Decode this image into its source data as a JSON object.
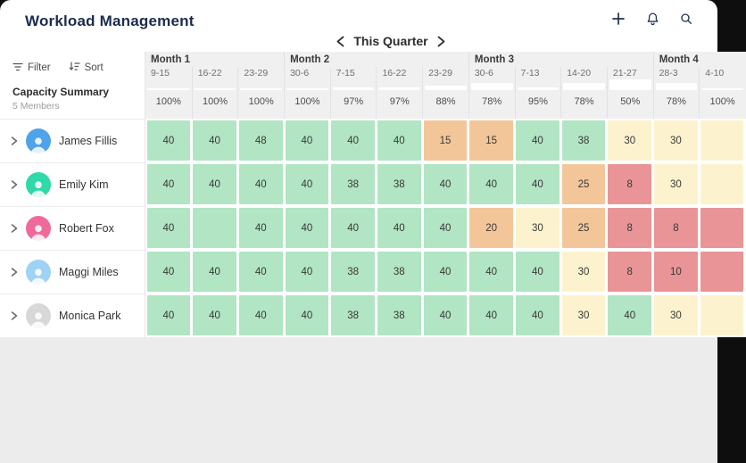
{
  "colors": {
    "green": "#b1e5c3",
    "orange": "#f3c69a",
    "yellow": "#fcf3ce",
    "red": "#e99496",
    "navy": "#1e3150"
  },
  "header": {
    "title": "Workload Management",
    "period": "This Quarter"
  },
  "toolbar": {
    "filter": "Filter",
    "sort": "Sort"
  },
  "summary": {
    "title": "Capacity Summary",
    "subtitle": "5 Members"
  },
  "grid": {
    "months": [
      {
        "label": "Month 1",
        "span": 3
      },
      {
        "label": "Month 2",
        "span": 4
      },
      {
        "label": "Month 3",
        "span": 4
      },
      {
        "label": "Month 4",
        "span": 2
      }
    ],
    "weeks": [
      "9-15",
      "16-22",
      "23-29",
      "30-6",
      "7-15",
      "16-22",
      "23-29",
      "30-6",
      "7-13",
      "14-20",
      "21-27",
      "28-3",
      "4-10"
    ],
    "capacity_pct": [
      100,
      100,
      100,
      100,
      97,
      97,
      88,
      78,
      95,
      78,
      50,
      78,
      100
    ],
    "members": [
      {
        "name": "James Fillis",
        "avatar_color": "#4fa3e8",
        "cells": [
          {
            "v": "40",
            "c": "green"
          },
          {
            "v": "40",
            "c": "green"
          },
          {
            "v": "48",
            "c": "green"
          },
          {
            "v": "40",
            "c": "green"
          },
          {
            "v": "40",
            "c": "green"
          },
          {
            "v": "40",
            "c": "green"
          },
          {
            "v": "15",
            "c": "orange"
          },
          {
            "v": "15",
            "c": "orange"
          },
          {
            "v": "40",
            "c": "green"
          },
          {
            "v": "38",
            "c": "green"
          },
          {
            "v": "30",
            "c": "yellow"
          },
          {
            "v": "30",
            "c": "yellow"
          },
          {
            "v": "",
            "c": "yellow"
          }
        ]
      },
      {
        "name": "Emily Kim",
        "avatar_color": "#2fd9a8",
        "cells": [
          {
            "v": "40",
            "c": "green"
          },
          {
            "v": "40",
            "c": "green"
          },
          {
            "v": "40",
            "c": "green"
          },
          {
            "v": "40",
            "c": "green"
          },
          {
            "v": "38",
            "c": "green"
          },
          {
            "v": "38",
            "c": "green"
          },
          {
            "v": "40",
            "c": "green"
          },
          {
            "v": "40",
            "c": "green"
          },
          {
            "v": "40",
            "c": "green"
          },
          {
            "v": "25",
            "c": "orange"
          },
          {
            "v": "8",
            "c": "red"
          },
          {
            "v": "30",
            "c": "yellow"
          },
          {
            "v": "",
            "c": "yellow"
          }
        ]
      },
      {
        "name": "Robert Fox",
        "avatar_color": "#ef6a9b",
        "cells": [
          {
            "v": "40",
            "c": "green"
          },
          {
            "v": "",
            "c": "green"
          },
          {
            "v": "40",
            "c": "green"
          },
          {
            "v": "40",
            "c": "green"
          },
          {
            "v": "40",
            "c": "green"
          },
          {
            "v": "40",
            "c": "green"
          },
          {
            "v": "40",
            "c": "green"
          },
          {
            "v": "20",
            "c": "orange"
          },
          {
            "v": "30",
            "c": "yellow"
          },
          {
            "v": "25",
            "c": "orange"
          },
          {
            "v": "8",
            "c": "red"
          },
          {
            "v": "8",
            "c": "red"
          },
          {
            "v": "",
            "c": "red"
          }
        ]
      },
      {
        "name": "Maggi Miles",
        "avatar_color": "#9fd3f5",
        "cells": [
          {
            "v": "40",
            "c": "green"
          },
          {
            "v": "40",
            "c": "green"
          },
          {
            "v": "40",
            "c": "green"
          },
          {
            "v": "40",
            "c": "green"
          },
          {
            "v": "38",
            "c": "green"
          },
          {
            "v": "38",
            "c": "green"
          },
          {
            "v": "40",
            "c": "green"
          },
          {
            "v": "40",
            "c": "green"
          },
          {
            "v": "40",
            "c": "green"
          },
          {
            "v": "30",
            "c": "yellow"
          },
          {
            "v": "8",
            "c": "red"
          },
          {
            "v": "10",
            "c": "red"
          },
          {
            "v": "",
            "c": "red"
          }
        ]
      },
      {
        "name": "Monica Park",
        "avatar_color": "#d8d8d8",
        "cells": [
          {
            "v": "40",
            "c": "green"
          },
          {
            "v": "40",
            "c": "green"
          },
          {
            "v": "40",
            "c": "green"
          },
          {
            "v": "40",
            "c": "green"
          },
          {
            "v": "38",
            "c": "green"
          },
          {
            "v": "38",
            "c": "green"
          },
          {
            "v": "40",
            "c": "green"
          },
          {
            "v": "40",
            "c": "green"
          },
          {
            "v": "40",
            "c": "green"
          },
          {
            "v": "30",
            "c": "yellow"
          },
          {
            "v": "40",
            "c": "green"
          },
          {
            "v": "30",
            "c": "yellow"
          },
          {
            "v": "",
            "c": "yellow"
          }
        ]
      }
    ]
  }
}
